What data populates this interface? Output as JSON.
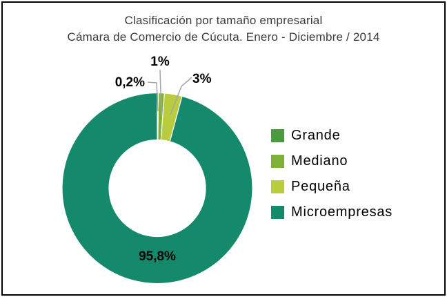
{
  "frame": {
    "background_color": "#ffffff",
    "border_color": "#000000"
  },
  "chart_data": {
    "type": "pie",
    "subtype": "donut",
    "title": "Clasificación por tamaño empresarial",
    "subtitle": "Cámara de Comercio de Cúcuta. Enero - Diciembre / 2014",
    "categories": [
      "Grande",
      "Mediano",
      "Pequeña",
      "Microempresas"
    ],
    "values": [
      0.2,
      1,
      3,
      95.8
    ],
    "unit": "percent",
    "data_labels": [
      "0,2%",
      "1%",
      "3%",
      "95,8%"
    ],
    "colors": [
      "#4a9b3f",
      "#7fb037",
      "#b9cc3e",
      "#15896c"
    ],
    "slice_ids": [
      "grande",
      "mediano",
      "pequena",
      "microempresas"
    ],
    "start_angle_deg": 0,
    "direction": "clockwise",
    "donut_hole_ratio": 0.51,
    "legend_position": "right",
    "legend_entries": [
      "Grande",
      "Mediano",
      "Pequeña",
      "Microempresas"
    ],
    "leader_line_color": "#a6a6a6",
    "label_text_color": "#000000",
    "title_text_color": "#3b3b3b"
  }
}
